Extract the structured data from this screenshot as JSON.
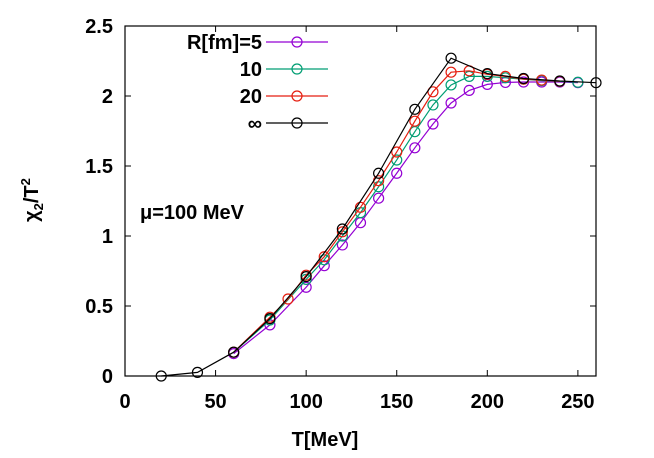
{
  "chart_data": {
    "type": "line",
    "xlabel": "T[MeV]",
    "ylabel": "χ2/T2",
    "xlim": [
      0,
      260
    ],
    "ylim": [
      0,
      2.5
    ],
    "xticks": [
      "0",
      "50",
      "100",
      "150",
      "200",
      "250"
    ],
    "yticks": [
      "0",
      "0.5",
      "1",
      "1.5",
      "2",
      "2.5"
    ],
    "annotation": "μ=100 MeV",
    "legend_position": "top-left",
    "series": [
      {
        "name": "R[fm]=5",
        "color": "#9400d3",
        "x": [
          60,
          80,
          100,
          110,
          120,
          130,
          140,
          150,
          160,
          170,
          180,
          190,
          200,
          210,
          220,
          230,
          240,
          250
        ],
        "y": [
          0.16,
          0.365,
          0.634,
          0.788,
          0.936,
          1.095,
          1.27,
          1.448,
          1.63,
          1.8,
          1.95,
          2.04,
          2.083,
          2.097,
          2.1,
          2.1,
          2.1,
          2.095
        ]
      },
      {
        "name": "10",
        "color": "#009e73",
        "x": [
          60,
          80,
          100,
          110,
          120,
          130,
          140,
          150,
          160,
          170,
          180,
          190,
          200,
          210,
          220,
          230,
          240,
          250
        ],
        "y": [
          0.17,
          0.4,
          0.69,
          0.83,
          1.0,
          1.167,
          1.352,
          1.543,
          1.745,
          1.936,
          2.079,
          2.14,
          2.14,
          2.13,
          2.12,
          2.11,
          2.105,
          2.098
        ]
      },
      {
        "name": "20",
        "color": "#e51e10",
        "x": [
          60,
          80,
          90,
          100,
          110,
          120,
          130,
          140,
          150,
          160,
          170,
          180,
          190,
          200,
          210,
          220,
          230,
          240
        ],
        "y": [
          0.17,
          0.42,
          0.55,
          0.72,
          0.852,
          1.03,
          1.205,
          1.395,
          1.6,
          1.82,
          2.03,
          2.17,
          2.18,
          2.155,
          2.14,
          2.12,
          2.114,
          2.105
        ]
      },
      {
        "name": "∞",
        "color": "#000000",
        "x": [
          20,
          40,
          60,
          80,
          100,
          120,
          140,
          160,
          180,
          200,
          220,
          240,
          260
        ],
        "y": [
          0,
          0.026,
          0.17,
          0.41,
          0.71,
          1.05,
          1.448,
          1.905,
          2.27,
          2.16,
          2.125,
          2.107,
          2.095
        ]
      }
    ]
  }
}
